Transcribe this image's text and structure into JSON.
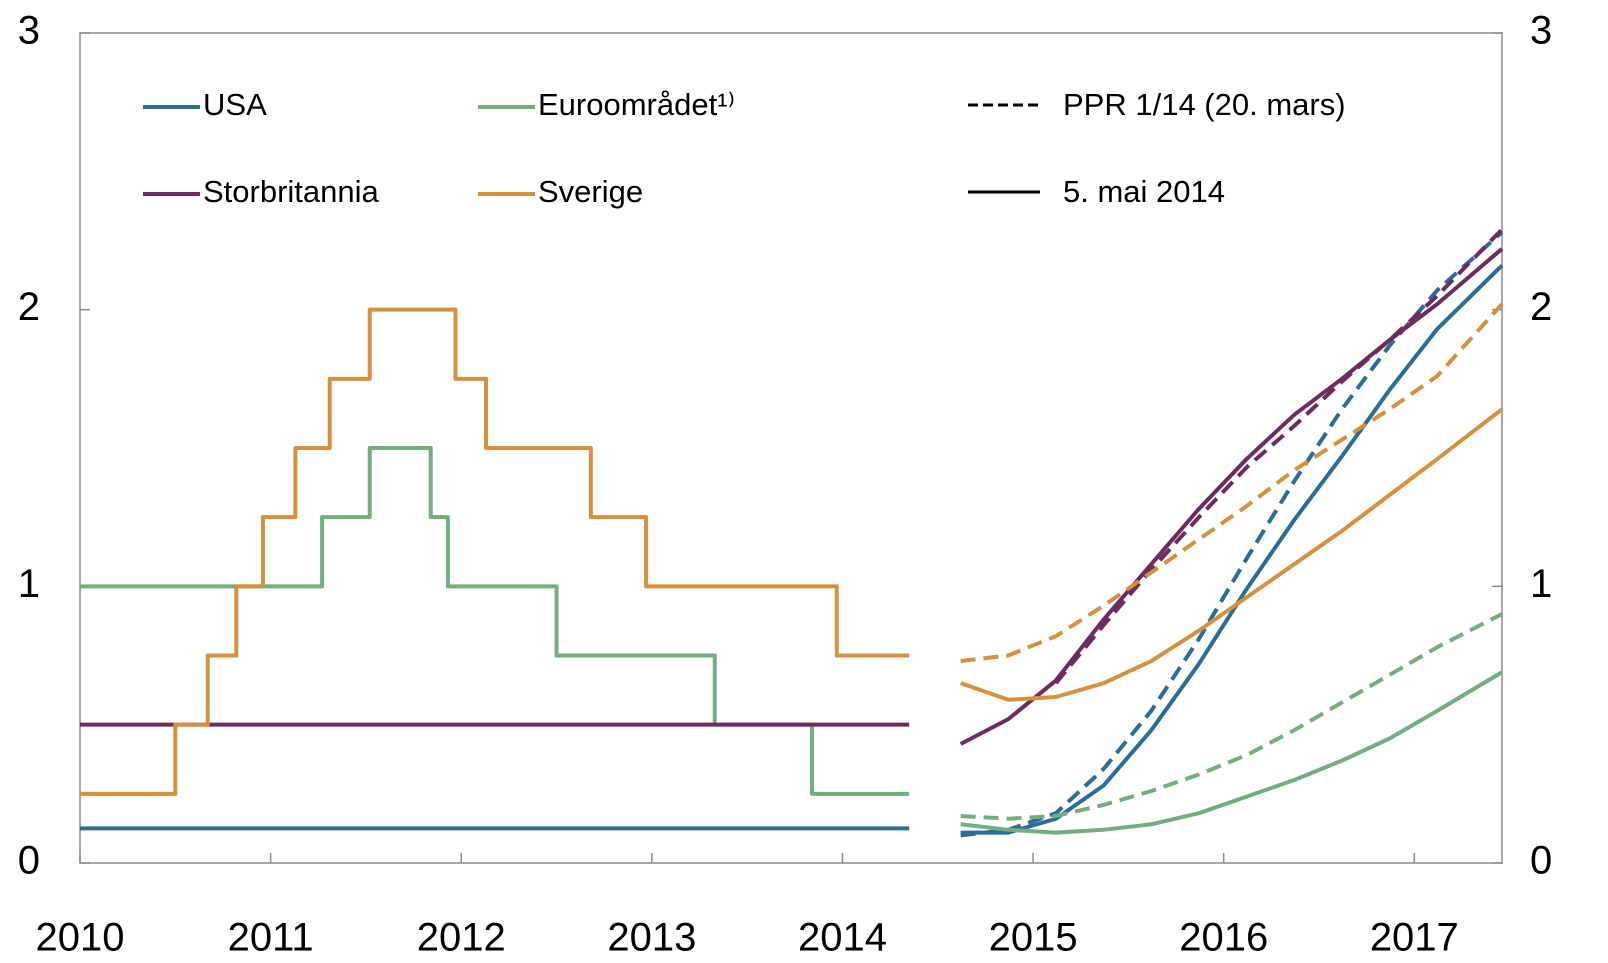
{
  "chart_data": {
    "type": "line",
    "xlim": [
      2010,
      2017.46
    ],
    "xticks": [
      2010,
      2011,
      2012,
      2013,
      2014,
      2015,
      2016,
      2017
    ],
    "ylim": [
      0,
      3
    ],
    "yticks": [
      0,
      1,
      2,
      3
    ],
    "grid": false,
    "line_styles": [
      {
        "label": "PPR 1/14 (20. mars)",
        "dashed": true
      },
      {
        "label": "5. mai 2014",
        "dashed": false
      }
    ],
    "series": [
      {
        "name": "USA",
        "color": "#2a6d96",
        "dashed": false,
        "step": true,
        "x": [
          2010,
          2014.35
        ],
        "values": [
          0.125,
          0.125
        ]
      },
      {
        "name": "Euroområdet¹⁾",
        "color": "#74ad80",
        "dashed": false,
        "step": true,
        "x": [
          2010,
          2011.27,
          2011.52,
          2011.84,
          2011.93,
          2012.5,
          2013.33,
          2013.84,
          2014.35
        ],
        "values": [
          1,
          1.25,
          1.5,
          1.25,
          1,
          0.75,
          0.5,
          0.25,
          0.25
        ]
      },
      {
        "name": "Storbritannia",
        "color": "#6e2c5e",
        "dashed": false,
        "step": true,
        "x": [
          2010,
          2014.35
        ],
        "values": [
          0.5,
          0.5
        ]
      },
      {
        "name": "Sverige",
        "color": "#d6913f",
        "dashed": false,
        "step": true,
        "x": [
          2010,
          2010.5,
          2010.67,
          2010.82,
          2010.96,
          2011.13,
          2011.31,
          2011.52,
          2011.97,
          2012.13,
          2012.68,
          2012.97,
          2013.97,
          2014.35
        ],
        "values": [
          0.25,
          0.5,
          0.75,
          1,
          1.25,
          1.5,
          1.75,
          2,
          1.75,
          1.5,
          1.25,
          1,
          0.75,
          0.75
        ]
      },
      {
        "name": "USA",
        "color": "#2a6d96",
        "dashed": false,
        "step": false,
        "x": [
          2014.62,
          2014.87,
          2015.12,
          2015.37,
          2015.62,
          2015.87,
          2016.12,
          2016.37,
          2016.62,
          2016.87,
          2017.12,
          2017.46
        ],
        "values": [
          0.11,
          0.11,
          0.16,
          0.28,
          0.48,
          0.72,
          0.99,
          1.24,
          1.47,
          1.71,
          1.93,
          2.16
        ]
      },
      {
        "name": "USA",
        "color": "#2a6d96",
        "dashed": true,
        "step": false,
        "x": [
          2014.62,
          2014.87,
          2015.12,
          2015.37,
          2015.62,
          2015.87,
          2016.12,
          2016.37,
          2016.62,
          2016.87,
          2017.12,
          2017.46
        ],
        "values": [
          0.1,
          0.12,
          0.18,
          0.34,
          0.55,
          0.81,
          1.1,
          1.38,
          1.64,
          1.87,
          2.07,
          2.28
        ]
      },
      {
        "name": "Euroområdet¹⁾",
        "color": "#74ad80",
        "dashed": false,
        "step": false,
        "x": [
          2014.62,
          2014.87,
          2015.12,
          2015.37,
          2015.62,
          2015.87,
          2016.12,
          2016.37,
          2016.62,
          2016.87,
          2017.12,
          2017.46
        ],
        "values": [
          0.14,
          0.12,
          0.11,
          0.12,
          0.14,
          0.18,
          0.24,
          0.3,
          0.37,
          0.45,
          0.55,
          0.69
        ]
      },
      {
        "name": "Euroområdet¹⁾",
        "color": "#74ad80",
        "dashed": true,
        "step": false,
        "x": [
          2014.62,
          2014.87,
          2015.12,
          2015.37,
          2015.62,
          2015.87,
          2016.12,
          2016.37,
          2016.62,
          2016.87,
          2017.12,
          2017.46
        ],
        "values": [
          0.17,
          0.16,
          0.17,
          0.21,
          0.26,
          0.32,
          0.39,
          0.48,
          0.58,
          0.68,
          0.78,
          0.9
        ]
      },
      {
        "name": "Storbritannia",
        "color": "#6e2c5e",
        "dashed": false,
        "step": false,
        "x": [
          2014.62,
          2014.87,
          2015.12,
          2015.37,
          2015.62,
          2015.87,
          2016.12,
          2016.37,
          2016.62,
          2016.87,
          2017.12,
          2017.46
        ],
        "values": [
          0.43,
          0.52,
          0.66,
          0.88,
          1.08,
          1.28,
          1.46,
          1.62,
          1.75,
          1.89,
          2.02,
          2.22
        ]
      },
      {
        "name": "Storbritannia",
        "color": "#6e2c5e",
        "dashed": true,
        "step": false,
        "x": [
          2015.12,
          2015.37,
          2015.62,
          2015.87,
          2016.12,
          2016.37,
          2016.62,
          2016.87,
          2017.12,
          2017.46
        ],
        "values": [
          0.65,
          0.86,
          1.06,
          1.25,
          1.43,
          1.58,
          1.74,
          1.89,
          2.05,
          2.29
        ]
      },
      {
        "name": "Sverige",
        "color": "#d6913f",
        "dashed": false,
        "step": false,
        "x": [
          2014.62,
          2014.87,
          2015.12,
          2015.37,
          2015.62,
          2015.87,
          2016.12,
          2016.37,
          2016.62,
          2016.87,
          2017.12,
          2017.46
        ],
        "values": [
          0.65,
          0.59,
          0.6,
          0.65,
          0.73,
          0.84,
          0.96,
          1.08,
          1.2,
          1.33,
          1.46,
          1.64
        ]
      },
      {
        "name": "Sverige",
        "color": "#d6913f",
        "dashed": true,
        "step": false,
        "x": [
          2014.62,
          2014.87,
          2015.12,
          2015.37,
          2015.62,
          2015.87,
          2016.12,
          2016.37,
          2016.62,
          2016.87,
          2017.12,
          2017.46
        ],
        "values": [
          0.73,
          0.75,
          0.82,
          0.93,
          1.05,
          1.17,
          1.29,
          1.42,
          1.53,
          1.64,
          1.76,
          2.02
        ]
      }
    ]
  }
}
